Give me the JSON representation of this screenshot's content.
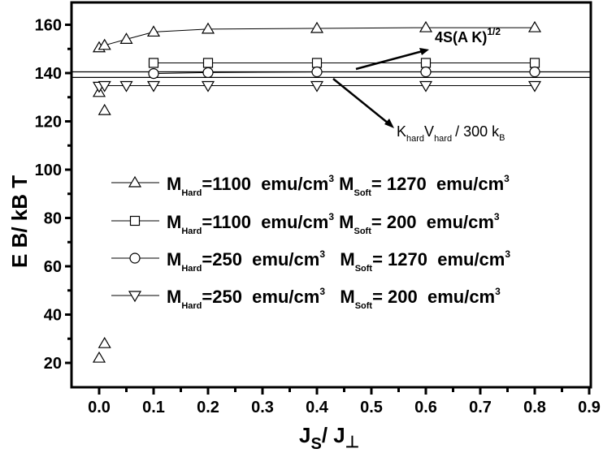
{
  "chart_data": {
    "type": "scatter",
    "title": "",
    "xlabel": "J_S / J_⊥",
    "ylabel": "E_B / k_B T",
    "xlim": [
      -0.05,
      0.9
    ],
    "ylim": [
      10,
      170
    ],
    "x_ticks": [
      "0.0",
      "0.1",
      "0.2",
      "0.3",
      "0.4",
      "0.5",
      "0.6",
      "0.7",
      "0.8",
      "0.9"
    ],
    "x_tick_values": [
      0.0,
      0.1,
      0.2,
      0.3,
      0.4,
      0.5,
      0.6,
      0.7,
      0.8,
      0.9
    ],
    "y_ticks": [
      "20",
      "40",
      "60",
      "80",
      "100",
      "120",
      "140",
      "160"
    ],
    "y_tick_values": [
      20,
      40,
      60,
      80,
      100,
      120,
      140,
      160
    ],
    "grid": false,
    "legend_position": "center-left inside",
    "series": [
      {
        "name": "M_Hard=1100 emu/cm^3 M_Soft=1270 emu/cm^3",
        "marker": "triangle-up",
        "x": [
          0.0,
          0.01,
          0.05,
          0.1,
          0.2,
          0.4,
          0.6,
          0.8
        ],
        "y": [
          150.5,
          151.5,
          154,
          157,
          158.2,
          158.5,
          158.8,
          158.8
        ],
        "extra_points": [
          [
            0.0,
            22
          ],
          [
            0.01,
            28
          ],
          [
            0.0,
            132
          ],
          [
            0.01,
            124.5
          ]
        ]
      },
      {
        "name": "M_Hard=1100 emu/cm^3 M_Soft=200 emu/cm^3",
        "marker": "square",
        "x": [
          0.1,
          0.2,
          0.4,
          0.6,
          0.8
        ],
        "y": [
          144.2,
          144.2,
          144.2,
          144.2,
          144.2
        ]
      },
      {
        "name": "M_Hard=250 emu/cm^3 M_Soft=1270 emu/cm^3",
        "marker": "circle",
        "x": [
          0.1,
          0.2,
          0.4,
          0.6,
          0.8
        ],
        "y": [
          139.8,
          140.2,
          140.5,
          140.5,
          140.5
        ]
      },
      {
        "name": "M_Hard=250 emu/cm^3 M_Soft=200 emu/cm^3",
        "marker": "triangle-down",
        "x": [
          0.0,
          0.01,
          0.05,
          0.1,
          0.2,
          0.4,
          0.6,
          0.8
        ],
        "y": [
          134.5,
          134.8,
          134.8,
          134.8,
          134.8,
          134.8,
          134.8,
          134.8
        ]
      }
    ],
    "reference_lines": [
      {
        "label": "4S(A K)^1/2",
        "y": 140.5
      },
      {
        "label": "K_hard V_hard / 300 k_B",
        "y": 138.2
      }
    ],
    "annotations": [
      {
        "text": "4S(A K)",
        "sup": "1/2",
        "arrow_to_line": "upper reference line"
      },
      {
        "text": "K_hard V_hard / 300 k_B",
        "arrow_to_line": "lower reference line"
      }
    ]
  },
  "axes": {
    "x_title_main": "J",
    "x_title_sub": "S",
    "x_title_slash": "/ J",
    "x_title_sub2": "⊥",
    "y_title": "E B/ kB T"
  },
  "legend": [
    {
      "hard_label": "M",
      "hard_sub": "Hard",
      "hard_value": "=1100  emu/cm",
      "sup1": "3",
      "soft_label": "M",
      "soft_sub": "Soft",
      "soft_value": "= 1270  emu/cm",
      "sup2": "3"
    },
    {
      "hard_label": "M",
      "hard_sub": "Hard",
      "hard_value": "=1100  emu/cm",
      "sup1": "3",
      "soft_label": "M",
      "soft_sub": "Soft",
      "soft_value": "= 200  emu/cm",
      "sup2": "3"
    },
    {
      "hard_label": "M",
      "hard_sub": "Hard",
      "hard_value": "=250  emu/cm",
      "sup1": "3",
      "soft_label": "M",
      "soft_sub": "Soft",
      "soft_value": "= 1270  emu/cm",
      "sup2": "3"
    },
    {
      "hard_label": "M",
      "hard_sub": "Hard",
      "hard_value": "=250  emu/cm",
      "sup1": "3",
      "soft_label": "M",
      "soft_sub": "Soft",
      "soft_value": "= 200  emu/cm",
      "sup2": "3"
    }
  ],
  "annotation_labels": {
    "upper_main": "4S(A K)",
    "upper_sup": "1/2",
    "lower_k": "K",
    "lower_k_sub": "hard",
    "lower_v": "V",
    "lower_v_sub": "hard",
    "lower_rest": "/ 300 k",
    "lower_rest_sub": "B"
  },
  "colors": {
    "axis": "#000000",
    "marker_stroke": "#000000",
    "background": "#ffffff"
  }
}
